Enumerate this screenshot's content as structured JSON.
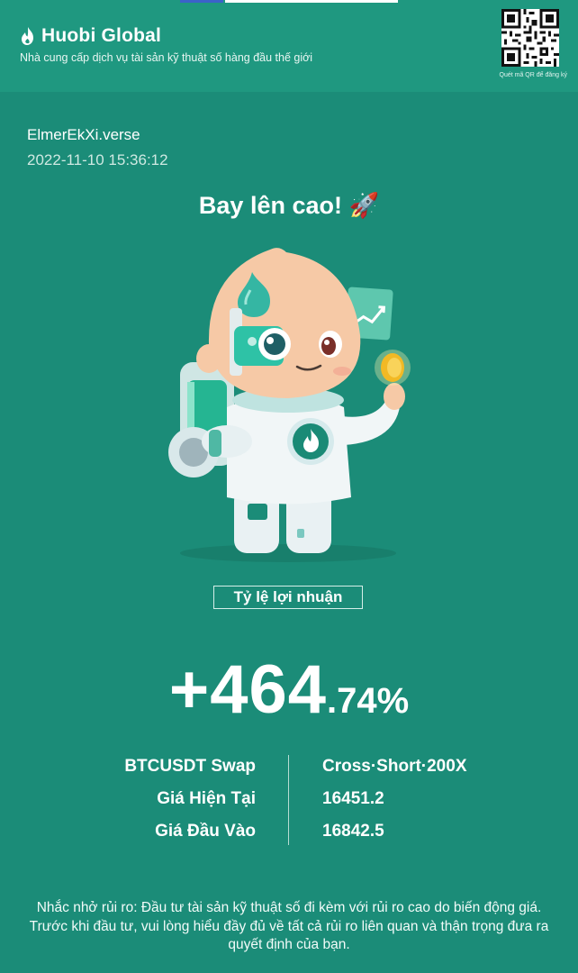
{
  "header": {
    "brand": "Huobi Global",
    "tagline": "Nhà cung cấp dịch vụ tài sản kỹ thuật số hàng đầu thế giới",
    "qr_label": "Quét mã QR để đăng ký",
    "logo_icon": "flame-icon",
    "qr_icon": "qr-code-icon"
  },
  "user": {
    "name": "ElmerEkXi.verse",
    "timestamp": "2022-11-10 15:36:12"
  },
  "headline": "Bay lên cao! 🚀",
  "profit_label": "Tỷ lệ lợi nhuận",
  "roi": {
    "main": "+464",
    "decimal": ".74%"
  },
  "details": {
    "contract": "BTCUSDT Swap",
    "mode": "Cross·Short·200X",
    "current_price_label": "Giá Hiện Tại",
    "current_price": "16451.2",
    "entry_price_label": "Giá Đầu Vào",
    "entry_price": "16842.5"
  },
  "risk_notice": "Nhắc nhở rủi ro: Đầu tư tài sản kỹ thuật số đi kèm với rủi ro cao do biến động giá. Trước khi đầu tư, vui lòng hiểu đầy đủ về tất cả rủi ro liên quan và thận trọng đưa ra quyết định của bạn.",
  "colors": {
    "background": "#1b8c78",
    "header": "#1f9880",
    "text": "#ffffff"
  }
}
